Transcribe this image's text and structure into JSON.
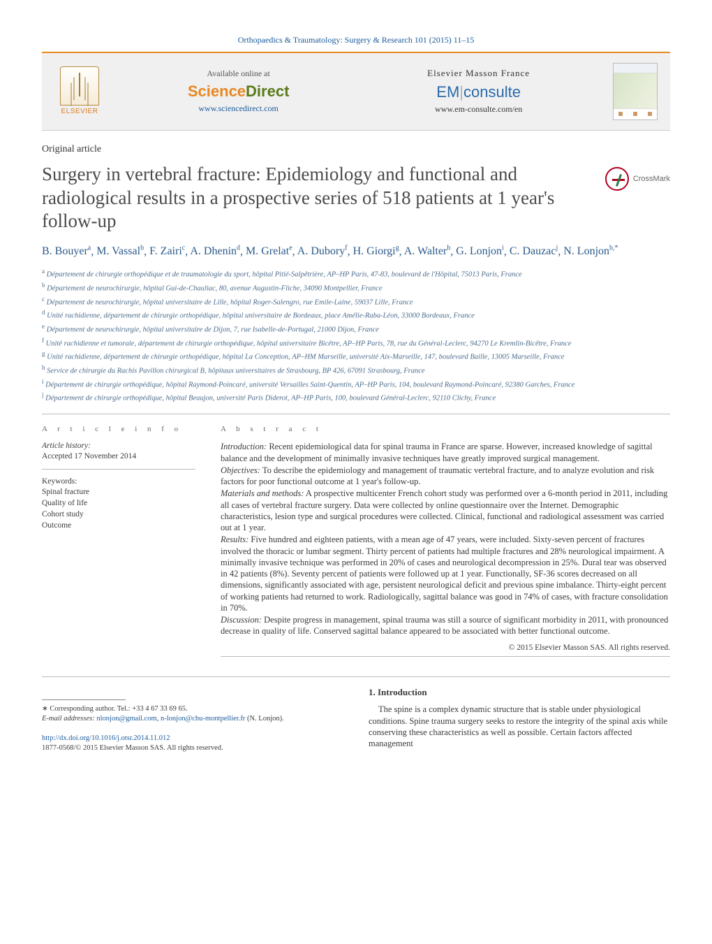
{
  "journal_header": "Orthopaedics & Traumatology: Surgery & Research 101 (2015) 11–15",
  "top_band": {
    "elsevier": "ELSEVIER",
    "available_line": "Available online at",
    "sd_science": "Science",
    "sd_direct": "Direct",
    "sd_url": "www.sciencedirect.com",
    "em_title": "Elsevier Masson France",
    "em_em": "EM",
    "em_consulte": "consulte",
    "em_url": "www.em-consulte.com/en"
  },
  "crossmark_label": "CrossMark",
  "article_type": "Original article",
  "title": "Surgery in vertebral fracture: Epidemiology and functional and radiological results in a prospective series of 518 patients at 1 year's follow-up",
  "authors_html": [
    {
      "name": "B. Bouyer",
      "sup": "a"
    },
    {
      "name": "M. Vassal",
      "sup": "b"
    },
    {
      "name": "F. Zairi",
      "sup": "c"
    },
    {
      "name": "A. Dhenin",
      "sup": "d"
    },
    {
      "name": "M. Grelat",
      "sup": "e"
    },
    {
      "name": "A. Dubory",
      "sup": "f"
    },
    {
      "name": "H. Giorgi",
      "sup": "g"
    },
    {
      "name": "A. Walter",
      "sup": "h"
    },
    {
      "name": "G. Lonjon",
      "sup": "i"
    },
    {
      "name": "C. Dauzac",
      "sup": "j"
    },
    {
      "name": "N. Lonjon",
      "sup": "b,*"
    }
  ],
  "affiliations": [
    {
      "s": "a",
      "t": "Département de chirurgie orthopédique et de traumatologie du sport, hôpital Pitié-Salpêtrière, AP–HP Paris, 47-83, boulevard de l'Hôpital, 75013 Paris, France"
    },
    {
      "s": "b",
      "t": "Département de neurochirurgie, hôpital Gui-de-Chauliac, 80, avenue Augustin-Fliche, 34090 Montpellier, France"
    },
    {
      "s": "c",
      "t": "Département de neurochirurgie, hôpital universitaire de Lille, hôpital Roger-Salengro, rue Emile-Laine, 59037 Lille, France"
    },
    {
      "s": "d",
      "t": "Unité rachidienne, département de chirurgie orthopédique, hôpital universitaire de Bordeaux, place Amélie-Raba-Léon, 33000 Bordeaux, France"
    },
    {
      "s": "e",
      "t": "Département de neurochirurgie, hôpital universitaire de Dijon, 7, rue Isabelle-de-Portugal, 21000 Dijon, France"
    },
    {
      "s": "f",
      "t": "Unité rachidienne et tumorale, département de chirurgie orthopédique, hôpital universitaire Bicêtre, AP–HP Paris, 78, rue du Général-Leclerc, 94270 Le Kremlin-Bicêtre, France"
    },
    {
      "s": "g",
      "t": "Unité rachidienne, département de chirurgie orthopédique, hôpital La Conception, AP–HM Marseille, université Aix-Marseille, 147, boulevard Baille, 13005 Marseille, France"
    },
    {
      "s": "h",
      "t": "Service de chirurgie du Rachis Pavillon chirurgical B, hôpitaux universitaires de Strasbourg, BP 426, 67091 Strasbourg, France"
    },
    {
      "s": "i",
      "t": "Département de chirurgie orthopédique, hôpital Raymond-Poincaré, université Versailles Saint-Quentin, AP–HP Paris, 104, boulevard Raymond-Poincaré, 92380 Garches, France"
    },
    {
      "s": "j",
      "t": "Département de chirurgie orthopédique, hôpital Beaujon, université Paris Diderot, AP–HP Paris, 100, boulevard Général-Leclerc, 92110 Clichy, France"
    }
  ],
  "article_info": {
    "heading": "a r t i c l e   i n f o",
    "history_label": "Article history:",
    "accepted": "Accepted 17 November 2014",
    "keywords_label": "Keywords:",
    "keywords": [
      "Spinal fracture",
      "Quality of life",
      "Cohort study",
      "Outcome"
    ]
  },
  "abstract": {
    "heading": "a b s t r a c t",
    "segments": [
      {
        "label": "Introduction:",
        "text": " Recent epidemiological data for spinal trauma in France are sparse. However, increased knowledge of sagittal balance and the development of minimally invasive techniques have greatly improved surgical management."
      },
      {
        "label": "Objectives:",
        "text": " To describe the epidemiology and management of traumatic vertebral fracture, and to analyze evolution and risk factors for poor functional outcome at 1 year's follow-up."
      },
      {
        "label": "Materials and methods:",
        "text": " A prospective multicenter French cohort study was performed over a 6-month period in 2011, including all cases of vertebral fracture surgery. Data were collected by online questionnaire over the Internet. Demographic characteristics, lesion type and surgical procedures were collected. Clinical, functional and radiological assessment was carried out at 1 year."
      },
      {
        "label": "Results:",
        "text": " Five hundred and eighteen patients, with a mean age of 47 years, were included. Sixty-seven percent of fractures involved the thoracic or lumbar segment. Thirty percent of patients had multiple fractures and 28% neurological impairment. A minimally invasive technique was performed in 20% of cases and neurological decompression in 25%. Dural tear was observed in 42 patients (8%). Seventy percent of patients were followed up at 1 year. Functionally, SF-36 scores decreased on all dimensions, significantly associated with age, persistent neurological deficit and previous spine imbalance. Thirty-eight percent of working patients had returned to work. Radiologically, sagittal balance was good in 74% of cases, with fracture consolidation in 70%."
      },
      {
        "label": "Discussion:",
        "text": " Despite progress in management, spinal trauma was still a source of significant morbidity in 2011, with pronounced decrease in quality of life. Conserved sagittal balance appeared to be associated with better functional outcome."
      }
    ],
    "copyright": "© 2015 Elsevier Masson SAS. All rights reserved."
  },
  "intro": {
    "heading": "1.  Introduction",
    "para": "The spine is a complex dynamic structure that is stable under physiological conditions. Spine trauma surgery seeks to restore the integrity of the spinal axis while conserving these characteristics as well as possible. Certain factors affected management"
  },
  "footnote": {
    "corr_label": "∗ Corresponding author. Tel.: +33 4 67 33 69 65.",
    "email_label": "E-mail addresses:",
    "email1": "nlonjon@gmail.com",
    "email2": "n-lonjon@chu-montpellier.fr",
    "email_tail": "(N. Lonjon)."
  },
  "doi": "http://dx.doi.org/10.1016/j.otsr.2014.11.012",
  "issn_line": "1877-0568/© 2015 Elsevier Masson SAS. All rights reserved.",
  "colors": {
    "accent_orange": "#e88820",
    "link_blue": "#1a5a9a",
    "author_blue": "#2a5a8a",
    "text_gray": "#3a3a3a"
  }
}
